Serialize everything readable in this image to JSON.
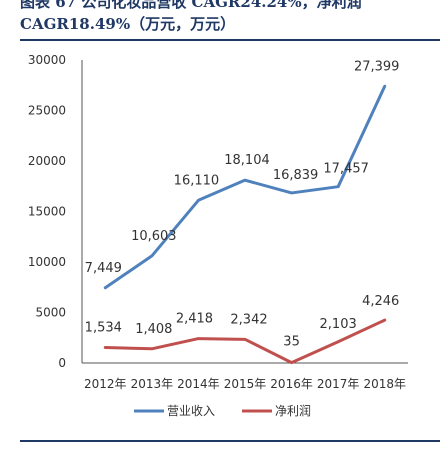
{
  "header": {
    "title_line1": "图表 67  公司化妆品营收 CAGR24.24%，净利润",
    "title_line2": "CAGR18.49%（万元，万元）"
  },
  "chart_data": {
    "type": "line",
    "title": "图表 67  公司化妆品营收 CAGR24.24%，净利润 CAGR18.49%（万元，万元）",
    "categories": [
      "2012年",
      "2013年",
      "2014年",
      "2015年",
      "2016年",
      "2017年",
      "2018年"
    ],
    "series": [
      {
        "name": "营业收入",
        "values": [
          7449,
          10603,
          16110,
          18104,
          16839,
          17457,
          27399
        ],
        "labels": [
          "7,449",
          "10,603",
          "16,110",
          "18,104",
          "16,839",
          "17,457",
          "27,399"
        ],
        "color": "#4f81bd"
      },
      {
        "name": "净利润",
        "values": [
          1534,
          1408,
          2418,
          2342,
          35,
          2103,
          4246
        ],
        "labels": [
          "1,534",
          "1,408",
          "2,418",
          "2,342",
          "35",
          "2,103",
          "4,246"
        ],
        "color": "#c0504d"
      }
    ],
    "ylim": [
      0,
      30000
    ],
    "yticks": [
      0,
      5000,
      10000,
      15000,
      20000,
      25000,
      30000
    ],
    "grid": false,
    "legend": "bottom"
  }
}
